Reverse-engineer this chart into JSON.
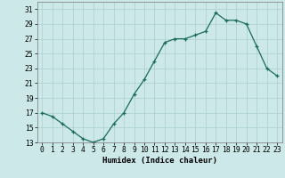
{
  "x": [
    0,
    1,
    2,
    3,
    4,
    5,
    6,
    7,
    8,
    9,
    10,
    11,
    12,
    13,
    14,
    15,
    16,
    17,
    18,
    19,
    20,
    21,
    22,
    23
  ],
  "y": [
    17,
    16.5,
    15.5,
    14.5,
    13.5,
    13,
    13.5,
    15.5,
    17,
    19.5,
    21.5,
    24,
    26.5,
    27,
    27,
    27.5,
    28,
    30.5,
    29.5,
    29.5,
    29,
    26,
    23,
    22
  ],
  "line_color": "#1a6b5a",
  "marker": "+",
  "background_color": "#cce8e8",
  "grid_color": "#aacfcf",
  "xlabel": "Humidex (Indice chaleur)",
  "xlim": [
    -0.5,
    23.5
  ],
  "ylim": [
    13,
    32
  ],
  "yticks": [
    13,
    15,
    17,
    19,
    21,
    23,
    25,
    27,
    29,
    31
  ],
  "xticks": [
    0,
    1,
    2,
    3,
    4,
    5,
    6,
    7,
    8,
    9,
    10,
    11,
    12,
    13,
    14,
    15,
    16,
    17,
    18,
    19,
    20,
    21,
    22,
    23
  ],
  "label_fontsize": 6.5,
  "tick_fontsize": 5.8
}
